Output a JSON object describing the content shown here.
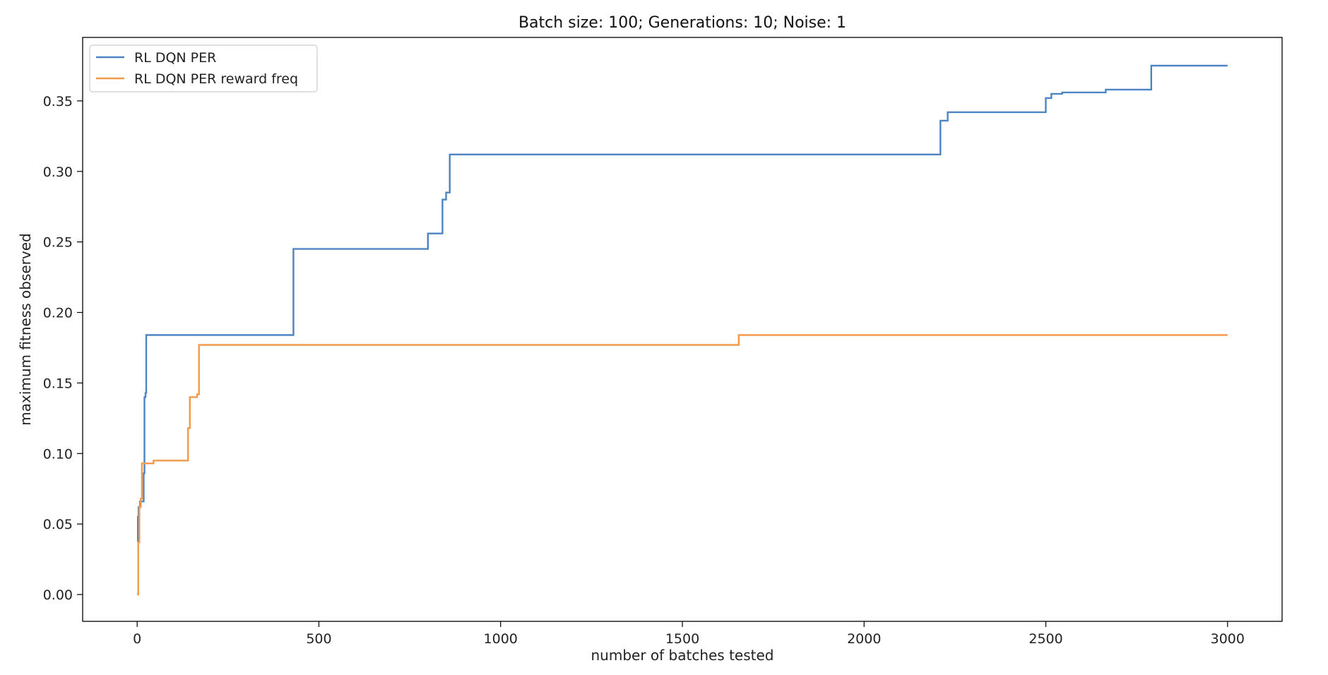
{
  "chart_data": {
    "type": "line",
    "title": "Batch size: 100; Generations: 10; Noise: 1",
    "xlabel": "number of batches tested",
    "ylabel": "maximum fitness observed",
    "xlim": [
      -150,
      3150
    ],
    "ylim": [
      -0.019,
      0.395
    ],
    "xticks": [
      0,
      500,
      1000,
      1500,
      2000,
      2500,
      3000
    ],
    "xtick_labels": [
      "0",
      "500",
      "1000",
      "1500",
      "2000",
      "2500",
      "3000"
    ],
    "yticks": [
      0.0,
      0.05,
      0.1,
      0.15,
      0.2,
      0.25,
      0.3,
      0.35
    ],
    "ytick_labels": [
      "0.00",
      "0.05",
      "0.10",
      "0.15",
      "0.20",
      "0.25",
      "0.30",
      "0.35"
    ],
    "grid": false,
    "legend": "top-left",
    "series": [
      {
        "name": "RL DQN PER",
        "color": "#4c84c4",
        "step": "post",
        "points": [
          [
            0,
            0.038
          ],
          [
            2,
            0.055
          ],
          [
            4,
            0.062
          ],
          [
            8,
            0.066
          ],
          [
            18,
            0.086
          ],
          [
            20,
            0.14
          ],
          [
            23,
            0.143
          ],
          [
            25,
            0.184
          ],
          [
            430,
            0.245
          ],
          [
            800,
            0.256
          ],
          [
            840,
            0.28
          ],
          [
            850,
            0.285
          ],
          [
            860,
            0.312
          ],
          [
            2210,
            0.336
          ],
          [
            2230,
            0.342
          ],
          [
            2500,
            0.352
          ],
          [
            2515,
            0.355
          ],
          [
            2545,
            0.356
          ],
          [
            2665,
            0.358
          ],
          [
            2790,
            0.375
          ],
          [
            3000,
            0.375
          ]
        ]
      },
      {
        "name": "RL DQN PER reward freq",
        "color": "#f39a4a",
        "step": "post",
        "points": [
          [
            0,
            0.0
          ],
          [
            3,
            0.037
          ],
          [
            6,
            0.062
          ],
          [
            10,
            0.068
          ],
          [
            13,
            0.093
          ],
          [
            45,
            0.095
          ],
          [
            140,
            0.118
          ],
          [
            145,
            0.14
          ],
          [
            165,
            0.142
          ],
          [
            170,
            0.177
          ],
          [
            1655,
            0.184
          ],
          [
            3000,
            0.184
          ]
        ]
      }
    ]
  }
}
